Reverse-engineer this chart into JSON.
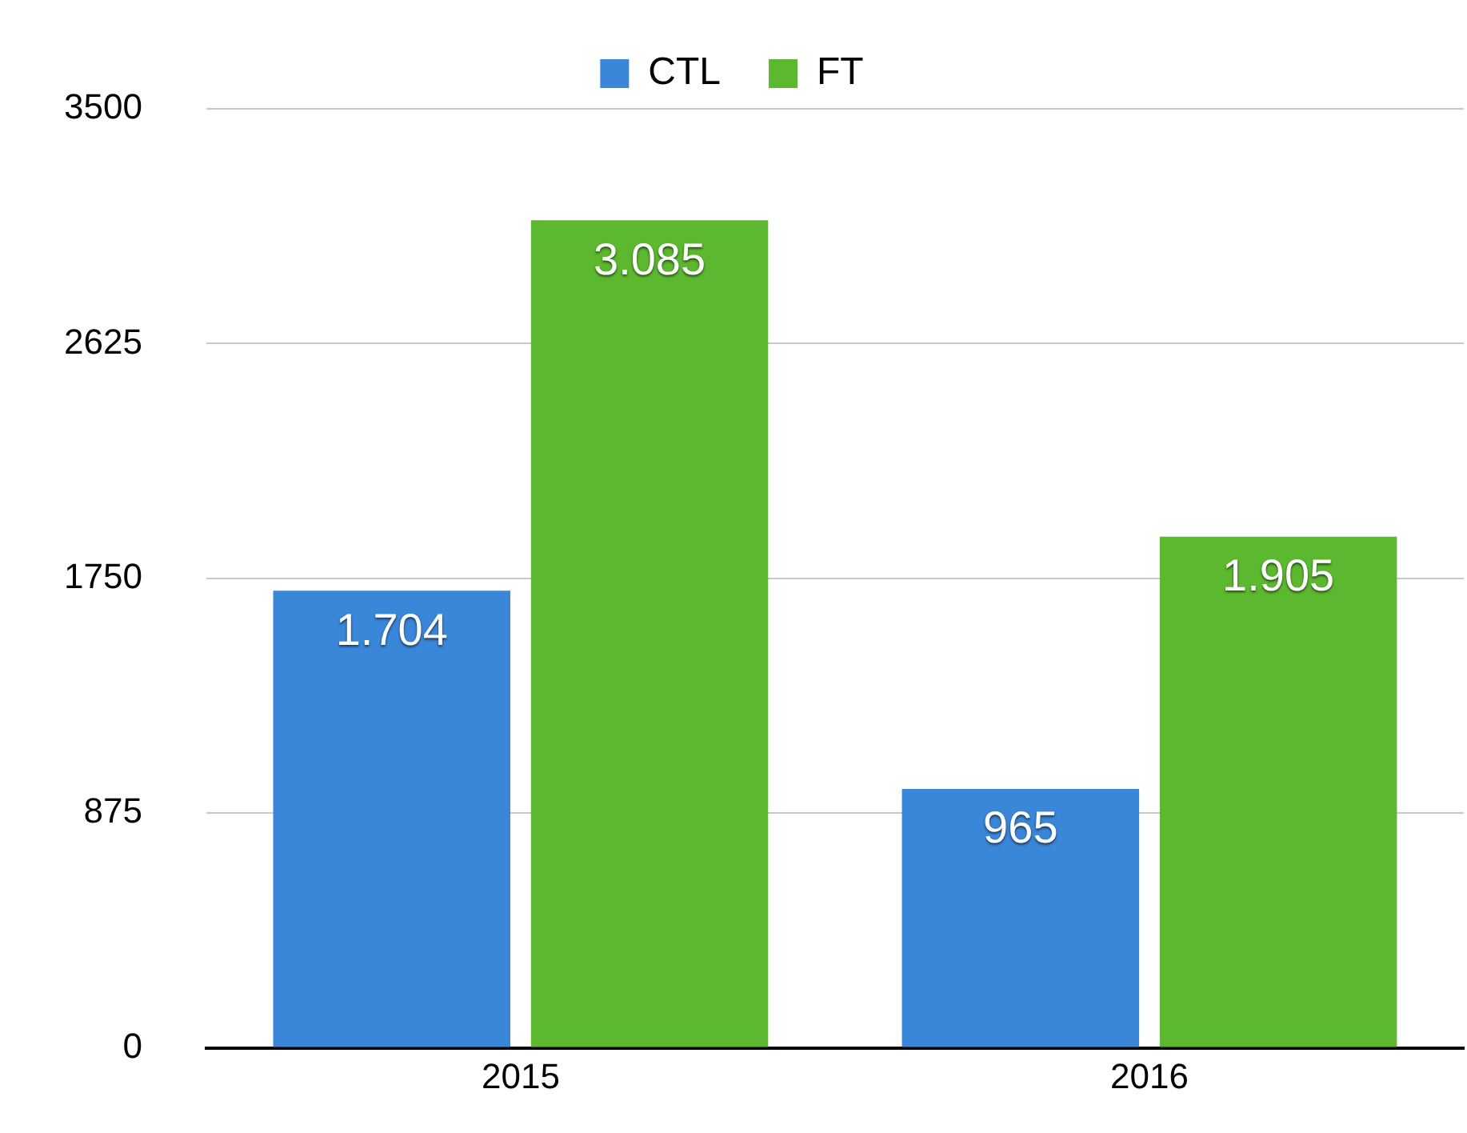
{
  "chart_data": {
    "type": "bar",
    "categories": [
      "2015",
      "2016"
    ],
    "series": [
      {
        "name": "CTL",
        "color": "#3a86d8",
        "values": [
          1704,
          965
        ],
        "value_labels": [
          "1.704",
          "965"
        ]
      },
      {
        "name": "FT",
        "color": "#5cb82e",
        "values": [
          3085,
          1905
        ],
        "value_labels": [
          "3.085",
          "1.905"
        ]
      }
    ],
    "ylim": [
      0,
      3500
    ],
    "yticks": [
      0,
      875,
      1750,
      2625,
      3500
    ],
    "grid": "y",
    "legend": "top"
  }
}
